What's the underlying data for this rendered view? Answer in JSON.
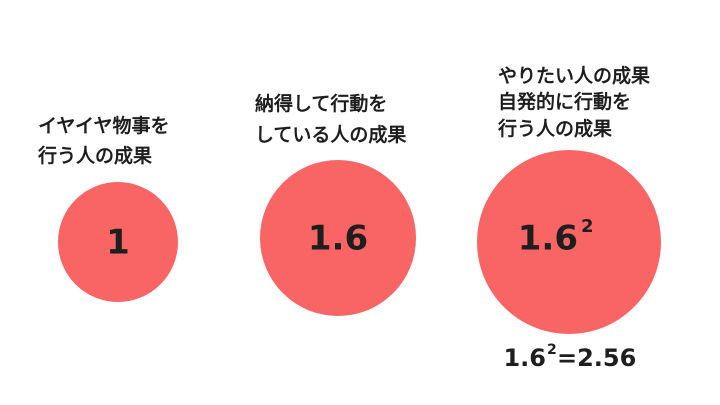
{
  "groups": [
    {
      "caption": [
        "イヤイヤ物事を",
        "行う人の成果"
      ],
      "value": "1"
    },
    {
      "caption": [
        "納得して行動を",
        "している人の成果"
      ],
      "value": "1.6"
    },
    {
      "caption": [
        "やりたい人の成果",
        "自発的に行動を",
        "行う人の成果"
      ],
      "value": {
        "base": "1.6",
        "exponent": "2"
      }
    }
  ],
  "equation": {
    "base": "1.6",
    "exponent": "2",
    "result": "=2.56"
  }
}
